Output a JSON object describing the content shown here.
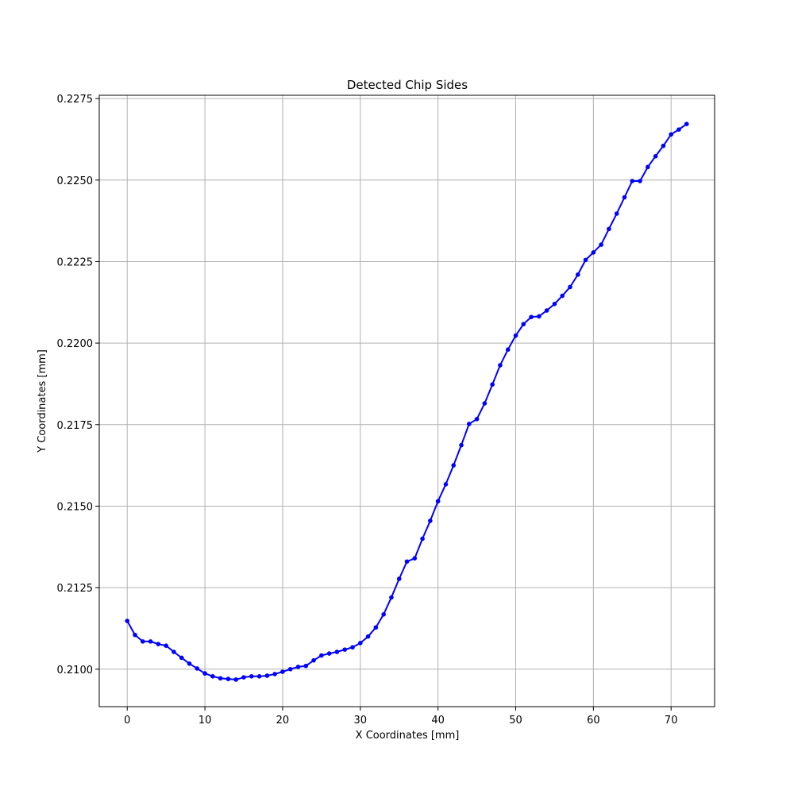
{
  "chart_data": {
    "type": "line",
    "title": "Detected Chip Sides",
    "xlabel": "X Coordinates [mm]",
    "ylabel": "Y Coordinates [mm]",
    "xlim": [
      -3.6,
      75.6
    ],
    "ylim": [
      0.20885,
      0.2276
    ],
    "xticks": [
      0,
      10,
      20,
      30,
      40,
      50,
      60,
      70
    ],
    "yticks": [
      0.21,
      0.2125,
      0.215,
      0.2175,
      0.22,
      0.2225,
      0.225,
      0.2275
    ],
    "xtick_labels": [
      "0",
      "10",
      "20",
      "30",
      "40",
      "50",
      "60",
      "70"
    ],
    "ytick_labels": [
      "0.2100",
      "0.2125",
      "0.2150",
      "0.2175",
      "0.2200",
      "0.2225",
      "0.2250",
      "0.2275"
    ],
    "grid": true,
    "series": [
      {
        "color": "#0000ff",
        "marker": "circle",
        "x": [
          0,
          1,
          2,
          3,
          4,
          5,
          6,
          7,
          8,
          9,
          10,
          11,
          12,
          13,
          14,
          15,
          16,
          17,
          18,
          19,
          20,
          21,
          22,
          23,
          24,
          25,
          26,
          27,
          28,
          29,
          30,
          31,
          32,
          33,
          34,
          35,
          36,
          37,
          38,
          39,
          40,
          41,
          42,
          43,
          44,
          45,
          46,
          47,
          48,
          49,
          50,
          51,
          52,
          53,
          54,
          55,
          56,
          57,
          58,
          59,
          60,
          61,
          62,
          63,
          64,
          65,
          66,
          67,
          68,
          69,
          70,
          71,
          72
        ],
        "y": [
          0.21148,
          0.21105,
          0.21085,
          0.21085,
          0.21077,
          0.21072,
          0.21053,
          0.21035,
          0.21017,
          0.21002,
          0.20987,
          0.20978,
          0.20972,
          0.2097,
          0.20968,
          0.20975,
          0.20978,
          0.20978,
          0.2098,
          0.20985,
          0.20992,
          0.21,
          0.21007,
          0.2101,
          0.21027,
          0.21042,
          0.21048,
          0.21053,
          0.2106,
          0.21067,
          0.2108,
          0.211,
          0.21128,
          0.21168,
          0.2122,
          0.21277,
          0.2133,
          0.2134,
          0.214,
          0.21455,
          0.21515,
          0.21567,
          0.21625,
          0.21687,
          0.21752,
          0.21767,
          0.21815,
          0.21873,
          0.21932,
          0.2198,
          0.22023,
          0.22058,
          0.2208,
          0.22082,
          0.221,
          0.2212,
          0.22145,
          0.22172,
          0.2221,
          0.22255,
          0.22278,
          0.22302,
          0.2235,
          0.22397,
          0.22447,
          0.22497,
          0.22497,
          0.2254,
          0.22573,
          0.22605,
          0.2264,
          0.22655,
          0.22672
        ]
      }
    ]
  }
}
